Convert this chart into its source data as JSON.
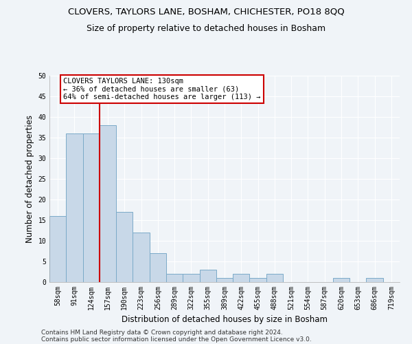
{
  "title1": "CLOVERS, TAYLORS LANE, BOSHAM, CHICHESTER, PO18 8QQ",
  "title2": "Size of property relative to detached houses in Bosham",
  "xlabel": "Distribution of detached houses by size in Bosham",
  "ylabel": "Number of detached properties",
  "categories": [
    "58sqm",
    "91sqm",
    "124sqm",
    "157sqm",
    "190sqm",
    "223sqm",
    "256sqm",
    "289sqm",
    "322sqm",
    "355sqm",
    "389sqm",
    "422sqm",
    "455sqm",
    "488sqm",
    "521sqm",
    "554sqm",
    "587sqm",
    "620sqm",
    "653sqm",
    "686sqm",
    "719sqm"
  ],
  "values": [
    16,
    36,
    36,
    38,
    17,
    12,
    7,
    2,
    2,
    3,
    1,
    2,
    1,
    2,
    0,
    0,
    0,
    1,
    0,
    1,
    0
  ],
  "bar_color": "#c8d8e8",
  "bar_edgecolor": "#7aaac8",
  "vline_x_index": 2,
  "vline_color": "#cc0000",
  "annotation_line1": "CLOVERS TAYLORS LANE: 130sqm",
  "annotation_line2": "← 36% of detached houses are smaller (63)",
  "annotation_line3": "64% of semi-detached houses are larger (113) →",
  "annotation_box_color": "#ffffff",
  "annotation_box_edgecolor": "#cc0000",
  "ylim": [
    0,
    50
  ],
  "yticks": [
    0,
    5,
    10,
    15,
    20,
    25,
    30,
    35,
    40,
    45,
    50
  ],
  "footer1": "Contains HM Land Registry data © Crown copyright and database right 2024.",
  "footer2": "Contains public sector information licensed under the Open Government Licence v3.0.",
  "bg_color": "#f0f4f8",
  "grid_color": "#ffffff",
  "title_fontsize": 9.5,
  "subtitle_fontsize": 9,
  "axis_label_fontsize": 8.5,
  "tick_fontsize": 7,
  "footer_fontsize": 6.5,
  "annotation_fontsize": 7.5
}
